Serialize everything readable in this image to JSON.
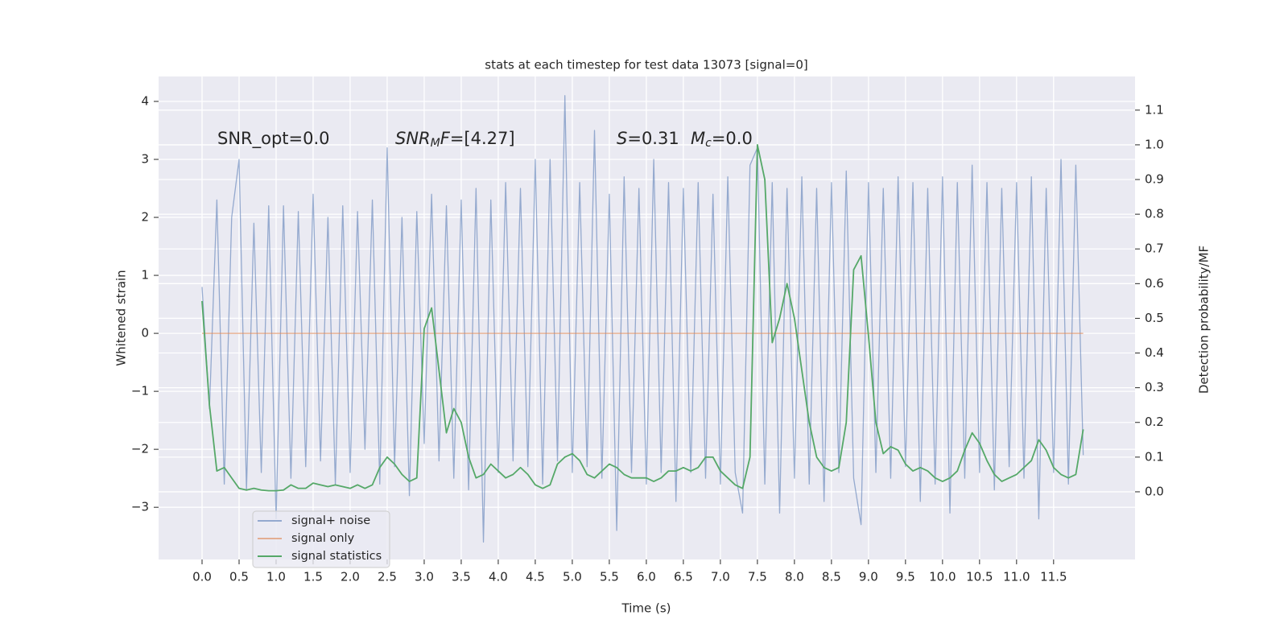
{
  "chart_data": {
    "type": "line",
    "title": "stats at each timestep for test data 13073 [signal=0]",
    "xlabel": "Time (s)",
    "ylabel": "Whitened strain",
    "y2label": "Detection probability/MF",
    "annotations": [
      [
        "SNR_opt=0.0"
      ],
      [
        "SNR",
        "M",
        "F",
        "=[4.27]"
      ],
      [
        "S",
        "=0.31"
      ],
      [
        "M",
        "c",
        "=0.0"
      ]
    ],
    "x": [
      0,
      0.1,
      0.2,
      0.3,
      0.4,
      0.5,
      0.6,
      0.7,
      0.8,
      0.9,
      1,
      1.1,
      1.2,
      1.3,
      1.4,
      1.5,
      1.6,
      1.7,
      1.8,
      1.9,
      2,
      2.1,
      2.2,
      2.3,
      2.4,
      2.5,
      2.6,
      2.7,
      2.8,
      2.9,
      3,
      3.1,
      3.2,
      3.3,
      3.4,
      3.5,
      3.6,
      3.7,
      3.8,
      3.9,
      4,
      4.1,
      4.2,
      4.3,
      4.4,
      4.5,
      4.6,
      4.7,
      4.8,
      4.9,
      5,
      5.1,
      5.2,
      5.3,
      5.4,
      5.5,
      5.6,
      5.7,
      5.8,
      5.9,
      6,
      6.1,
      6.2,
      6.3,
      6.4,
      6.5,
      6.6,
      6.7,
      6.8,
      6.9,
      7,
      7.1,
      7.2,
      7.3,
      7.4,
      7.5,
      7.6,
      7.7,
      7.8,
      7.9,
      8,
      8.1,
      8.2,
      8.3,
      8.4,
      8.5,
      8.6,
      8.7,
      8.8,
      8.9,
      9,
      9.1,
      9.2,
      9.3,
      9.4,
      9.5,
      9.6,
      9.7,
      9.8,
      9.9,
      10,
      10.1,
      10.2,
      10.3,
      10.4,
      10.5,
      10.6,
      10.7,
      10.8,
      10.9,
      11,
      11.1,
      11.2,
      11.3,
      11.4,
      11.5,
      11.6,
      11.7,
      11.8,
      11.9
    ],
    "series": [
      {
        "name": "signal+ noise",
        "color": "#4c72b0",
        "axis": "y",
        "values": [
          0.8,
          -1.3,
          2.3,
          -2.6,
          2.0,
          3.0,
          -2.7,
          1.9,
          -2.4,
          2.2,
          -3.2,
          2.2,
          -2.5,
          2.1,
          -2.3,
          2.4,
          -2.2,
          2.0,
          -2.6,
          2.2,
          -2.4,
          2.1,
          -2.0,
          2.3,
          -2.6,
          3.2,
          -2.3,
          2.0,
          -2.8,
          2.1,
          -1.9,
          2.4,
          -2.2,
          2.2,
          -2.5,
          2.3,
          -2.7,
          2.5,
          -3.6,
          2.3,
          -2.4,
          2.6,
          -2.2,
          2.5,
          -2.3,
          3.0,
          -2.6,
          3.0,
          -2.2,
          4.1,
          -2.4,
          2.6,
          -2.3,
          3.5,
          -2.5,
          2.4,
          -3.4,
          2.7,
          -2.4,
          2.5,
          -2.6,
          3.0,
          -2.4,
          2.6,
          -2.9,
          2.5,
          -2.4,
          2.6,
          -2.5,
          2.4,
          -2.6,
          2.7,
          -2.4,
          -3.1,
          2.9,
          3.2,
          -2.6,
          2.6,
          -3.1,
          2.5,
          -2.5,
          2.7,
          -2.6,
          2.5,
          -2.9,
          2.6,
          -2.4,
          2.8,
          -2.5,
          -3.3,
          2.6,
          -2.4,
          2.5,
          -2.5,
          2.7,
          -2.3,
          2.6,
          -2.9,
          2.5,
          -2.6,
          2.7,
          -3.1,
          2.6,
          -2.5,
          2.9,
          -2.4,
          2.6,
          -2.7,
          2.5,
          -2.3,
          2.6,
          -2.5,
          2.7,
          -3.2,
          2.5,
          -2.4,
          3.0,
          -2.6,
          2.9,
          -2.1
        ]
      },
      {
        "name": "signal only",
        "color": "#dd8452",
        "axis": "y",
        "values": [
          0,
          0,
          0,
          0,
          0,
          0,
          0,
          0,
          0,
          0,
          0,
          0,
          0,
          0,
          0,
          0,
          0,
          0,
          0,
          0,
          0,
          0,
          0,
          0,
          0,
          0,
          0,
          0,
          0,
          0,
          0,
          0,
          0,
          0,
          0,
          0,
          0,
          0,
          0,
          0,
          0,
          0,
          0,
          0,
          0,
          0,
          0,
          0,
          0,
          0,
          0,
          0,
          0,
          0,
          0,
          0,
          0,
          0,
          0,
          0,
          0,
          0,
          0,
          0,
          0,
          0,
          0,
          0,
          0,
          0,
          0,
          0,
          0,
          0,
          0,
          0,
          0,
          0,
          0,
          0,
          0,
          0,
          0,
          0,
          0,
          0,
          0,
          0,
          0,
          0,
          0,
          0,
          0,
          0,
          0,
          0,
          0,
          0,
          0,
          0,
          0,
          0,
          0,
          0,
          0,
          0,
          0,
          0,
          0,
          0,
          0,
          0,
          0,
          0,
          0,
          0,
          0,
          0,
          0,
          0
        ]
      },
      {
        "name": "signal statistics",
        "color": "#55a868",
        "axis": "y2",
        "values": [
          0.55,
          0.25,
          0.06,
          0.07,
          0.04,
          0.01,
          0.005,
          0.01,
          0.005,
          0.003,
          0.003,
          0.005,
          0.02,
          0.01,
          0.01,
          0.025,
          0.02,
          0.015,
          0.02,
          0.015,
          0.01,
          0.02,
          0.01,
          0.02,
          0.07,
          0.1,
          0.08,
          0.05,
          0.03,
          0.04,
          0.47,
          0.53,
          0.35,
          0.17,
          0.24,
          0.2,
          0.1,
          0.04,
          0.05,
          0.08,
          0.06,
          0.04,
          0.05,
          0.07,
          0.05,
          0.02,
          0.01,
          0.02,
          0.08,
          0.1,
          0.11,
          0.09,
          0.05,
          0.04,
          0.06,
          0.08,
          0.07,
          0.05,
          0.04,
          0.04,
          0.04,
          0.03,
          0.04,
          0.06,
          0.06,
          0.07,
          0.06,
          0.07,
          0.1,
          0.1,
          0.06,
          0.04,
          0.02,
          0.01,
          0.1,
          1.0,
          0.9,
          0.43,
          0.5,
          0.6,
          0.5,
          0.35,
          0.2,
          0.1,
          0.07,
          0.06,
          0.07,
          0.2,
          0.64,
          0.68,
          0.45,
          0.2,
          0.11,
          0.13,
          0.12,
          0.08,
          0.06,
          0.07,
          0.06,
          0.04,
          0.03,
          0.04,
          0.06,
          0.12,
          0.17,
          0.14,
          0.09,
          0.05,
          0.03,
          0.04,
          0.05,
          0.07,
          0.09,
          0.15,
          0.12,
          0.07,
          0.05,
          0.04,
          0.05,
          0.18
        ]
      }
    ],
    "xlim": [
      -0.587,
      12.6
    ],
    "xticks": [
      {
        "value": 0,
        "label": "0.0"
      },
      {
        "value": 0.5,
        "label": "0.5"
      },
      {
        "value": 1,
        "label": "1.0"
      },
      {
        "value": 1.5,
        "label": "1.5"
      },
      {
        "value": 2,
        "label": "2.0"
      },
      {
        "value": 2.5,
        "label": "2.5"
      },
      {
        "value": 3,
        "label": "3.0"
      },
      {
        "value": 3.5,
        "label": "3.5"
      },
      {
        "value": 4,
        "label": "4.0"
      },
      {
        "value": 4.5,
        "label": "4.5"
      },
      {
        "value": 5,
        "label": "5.0"
      },
      {
        "value": 5.5,
        "label": "5.5"
      },
      {
        "value": 6,
        "label": "6.0"
      },
      {
        "value": 6.5,
        "label": "6.5"
      },
      {
        "value": 7,
        "label": "7.0"
      },
      {
        "value": 7.5,
        "label": "7.5"
      },
      {
        "value": 8,
        "label": "8.0"
      },
      {
        "value": 8.5,
        "label": "8.5"
      },
      {
        "value": 9,
        "label": "9.0"
      },
      {
        "value": 9.5,
        "label": "9.5"
      },
      {
        "value": 10,
        "label": "10.0"
      },
      {
        "value": 10.5,
        "label": "10.5"
      },
      {
        "value": 11,
        "label": "11.0"
      },
      {
        "value": 11.5,
        "label": "11.5"
      }
    ],
    "ylim": [
      -3.9,
      4.43
    ],
    "yticks": [
      {
        "value": -3,
        "label": "−3"
      },
      {
        "value": -2,
        "label": "−2"
      },
      {
        "value": -1,
        "label": "−1"
      },
      0,
      1,
      2,
      3,
      4
    ],
    "y2lim": [
      -0.195,
      1.197
    ],
    "y2ticks": [
      {
        "value": 0,
        "label": "0.0"
      },
      {
        "value": 0.1,
        "label": "0.1"
      },
      {
        "value": 0.2,
        "label": "0.2"
      },
      {
        "value": 0.3,
        "label": "0.3"
      },
      {
        "value": 0.4,
        "label": "0.4"
      },
      {
        "value": 0.5,
        "label": "0.5"
      },
      {
        "value": 0.6,
        "label": "0.6"
      },
      {
        "value": 0.7,
        "label": "0.7"
      },
      {
        "value": 0.8,
        "label": "0.8"
      },
      {
        "value": 0.9,
        "label": "0.9"
      },
      {
        "value": 1,
        "label": "1.0"
      },
      {
        "value": 1.1,
        "label": "1.1"
      }
    ],
    "grid": true,
    "legend": "lower-left"
  }
}
